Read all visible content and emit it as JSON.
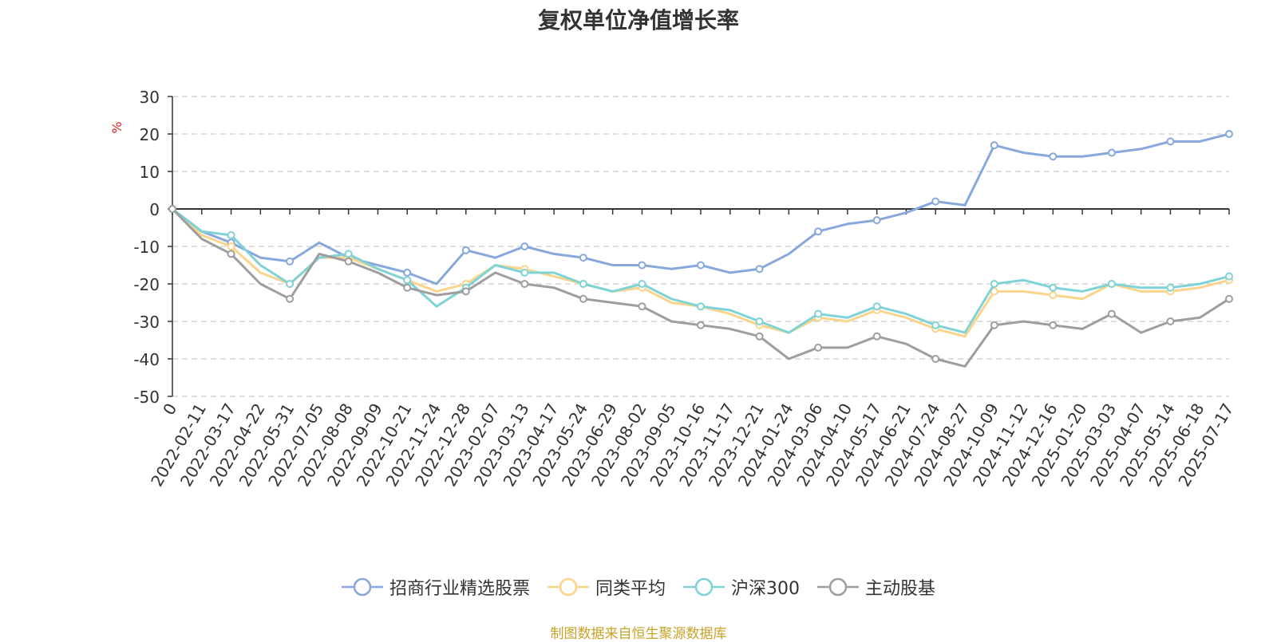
{
  "source_note": "制图数据来自恒生聚源数据库",
  "chart_data": {
    "type": "line",
    "title": "复权单位净值增长率",
    "ylabel": "%",
    "ylim": [
      -50,
      30
    ],
    "yticks": [
      30,
      20,
      10,
      0,
      -10,
      -20,
      -30,
      -40,
      -50
    ],
    "grid": true,
    "legend_position": "bottom",
    "x": [
      "0",
      "2022-02-11",
      "2022-03-17",
      "2022-04-22",
      "2022-05-31",
      "2022-07-05",
      "2022-08-08",
      "2022-09-09",
      "2022-10-21",
      "2022-11-24",
      "2022-12-28",
      "2023-02-07",
      "2023-03-13",
      "2023-04-17",
      "2023-05-24",
      "2023-06-29",
      "2023-08-02",
      "2023-09-05",
      "2023-10-16",
      "2023-11-17",
      "2023-12-21",
      "2024-01-24",
      "2024-03-06",
      "2024-04-10",
      "2024-05-17",
      "2024-06-21",
      "2024-07-24",
      "2024-08-27",
      "2024-10-09",
      "2024-11-12",
      "2024-12-16",
      "2025-01-20",
      "2025-03-03",
      "2025-04-07",
      "2025-05-14",
      "2025-06-18",
      "2025-07-17"
    ],
    "series": [
      {
        "name": "招商行业精选股票",
        "color": "#86a8dc",
        "values": [
          0,
          -6,
          -9,
          -13,
          -14,
          -9,
          -13,
          -15,
          -17,
          -20,
          -11,
          -13,
          -10,
          -12,
          -13,
          -15,
          -15,
          -16,
          -15,
          -17,
          -16,
          -12,
          -6,
          -4,
          -3,
          -1,
          2,
          1,
          17,
          15,
          14,
          14,
          15,
          16,
          18,
          18,
          20
        ]
      },
      {
        "name": "同类平均",
        "color": "#fbd48c",
        "values": [
          0,
          -7,
          -10,
          -17,
          -20,
          -13,
          -13,
          -16,
          -19,
          -22,
          -20,
          -15,
          -16,
          -18,
          -20,
          -22,
          -21,
          -25,
          -26,
          -28,
          -31,
          -33,
          -29,
          -30,
          -27,
          -29,
          -32,
          -34,
          -22,
          -22,
          -23,
          -24,
          -20,
          -22,
          -22,
          -21,
          -19
        ]
      },
      {
        "name": "沪深300",
        "color": "#7fd3d6",
        "values": [
          0,
          -6,
          -7,
          -15,
          -20,
          -13,
          -12,
          -16,
          -19,
          -26,
          -21,
          -15,
          -17,
          -17,
          -20,
          -22,
          -20,
          -24,
          -26,
          -27,
          -30,
          -33,
          -28,
          -29,
          -26,
          -28,
          -31,
          -33,
          -20,
          -19,
          -21,
          -22,
          -20,
          -21,
          -21,
          -20,
          -18
        ]
      },
      {
        "name": "主动股基",
        "color": "#9e9e9e",
        "values": [
          0,
          -8,
          -12,
          -20,
          -24,
          -12,
          -14,
          -17,
          -21,
          -23,
          -22,
          -17,
          -20,
          -21,
          -24,
          -25,
          -26,
          -30,
          -31,
          -32,
          -34,
          -40,
          -37,
          -37,
          -34,
          -36,
          -40,
          -42,
          -31,
          -30,
          -31,
          -32,
          -28,
          -33,
          -30,
          -29,
          -24
        ]
      }
    ]
  }
}
